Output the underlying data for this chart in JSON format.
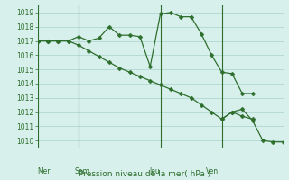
{
  "background_color": "#d8f0ec",
  "grid_color": "#b0d8d0",
  "line_color": "#2d6e2d",
  "title": "Pression niveau de la mer( hPa )",
  "xlabel_day_labels": [
    "Mer",
    "Sam",
    "Jeu",
    "Ven"
  ],
  "xlabel_day_positions": [
    0,
    4,
    12,
    18
  ],
  "ylim": [
    1009.5,
    1019.5
  ],
  "yticks": [
    1010,
    1011,
    1012,
    1013,
    1014,
    1015,
    1016,
    1017,
    1018,
    1019
  ],
  "line1_x": [
    0,
    1,
    2,
    3,
    4,
    5,
    6,
    7,
    8,
    9,
    10,
    11,
    12,
    13,
    14,
    15,
    16,
    17,
    18,
    19,
    20,
    21
  ],
  "line1_y": [
    1017.0,
    1017.0,
    1017.0,
    1017.0,
    1017.3,
    1017.0,
    1017.2,
    1018.0,
    1017.4,
    1017.4,
    1017.3,
    1015.2,
    1018.9,
    1019.0,
    1018.7,
    1018.7,
    1017.5,
    1016.0,
    1014.8,
    1014.7,
    1013.3,
    1013.3
  ],
  "line2_x": [
    0,
    1,
    2,
    3,
    4,
    5,
    6,
    7,
    8,
    9,
    10,
    11,
    12,
    13,
    14,
    15,
    16,
    17,
    18,
    19,
    20,
    21
  ],
  "line2_y": [
    1017.0,
    1017.0,
    1017.0,
    1017.0,
    1016.7,
    1016.3,
    1015.9,
    1015.5,
    1015.1,
    1014.8,
    1014.5,
    1014.2,
    1013.9,
    1013.6,
    1013.3,
    1013.0,
    1012.5,
    1012.0,
    1011.5,
    1012.0,
    1011.7,
    1011.5
  ],
  "line3_x": [
    18,
    19,
    20,
    21,
    22,
    23,
    24
  ],
  "line3_y": [
    1011.5,
    1012.0,
    1012.2,
    1011.4,
    1010.0,
    1009.9,
    1009.9
  ],
  "xlim": [
    0,
    24
  ]
}
